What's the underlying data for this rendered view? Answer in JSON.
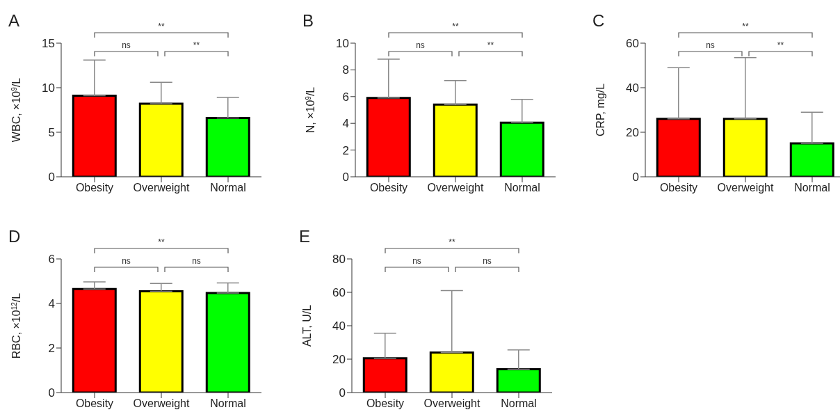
{
  "chart_data": [
    {
      "type": "bar",
      "title": "A",
      "ylabel": "WBC, ×10$^{9}$/L",
      "categories": [
        "Obesity",
        "Overweight",
        "Normal"
      ],
      "values": [
        9.1,
        8.2,
        6.6
      ],
      "colors": [
        "#ff0000",
        "#ffff00",
        "#00ff00"
      ],
      "errors": [
        [
          9.1,
          13.1
        ],
        [
          8.2,
          10.6
        ],
        [
          6.6,
          8.9
        ]
      ],
      "ylim": [
        0,
        15
      ],
      "yticks": [
        0,
        5,
        10,
        15
      ],
      "annotations": [
        "ns",
        "**",
        "**"
      ]
    },
    {
      "type": "bar",
      "title": "B",
      "ylabel": "N, ×10$^{9}$/L",
      "categories": [
        "Obesity",
        "Overweight",
        "Normal"
      ],
      "values": [
        5.9,
        5.4,
        4.05
      ],
      "colors": [
        "#ff0000",
        "#ffff00",
        "#00ff00"
      ],
      "errors": [
        [
          5.9,
          8.8
        ],
        [
          5.4,
          7.2
        ],
        [
          4.05,
          5.8
        ]
      ],
      "ylim": [
        0,
        10
      ],
      "yticks": [
        0,
        2,
        4,
        6,
        8,
        10
      ],
      "annotations": [
        "ns",
        "**",
        "**"
      ]
    },
    {
      "type": "bar",
      "title": "C",
      "ylabel": "CRP, mg/L",
      "categories": [
        "Obesity",
        "Overweight",
        "Normal"
      ],
      "values": [
        26,
        26,
        15
      ],
      "colors": [
        "#ff0000",
        "#ffff00",
        "#00ff00"
      ],
      "errors": [
        [
          26,
          49
        ],
        [
          26,
          53.5
        ],
        [
          15,
          29
        ]
      ],
      "ylim": [
        0,
        60
      ],
      "yticks": [
        0,
        20,
        40,
        60
      ],
      "annotations": [
        "ns",
        "**",
        "**"
      ]
    },
    {
      "type": "bar",
      "title": "D",
      "ylabel": "RBC, ×10$^{12}$/L",
      "categories": [
        "Obesity",
        "Overweight",
        "Normal"
      ],
      "values": [
        4.65,
        4.55,
        4.47
      ],
      "colors": [
        "#ff0000",
        "#ffff00",
        "#00ff00"
      ],
      "errors": [
        [
          4.65,
          4.97
        ],
        [
          4.55,
          4.9
        ],
        [
          4.47,
          4.92
        ]
      ],
      "ylim": [
        0,
        6
      ],
      "yticks": [
        0,
        2,
        4,
        6
      ],
      "annotations": [
        "ns",
        "ns",
        "**"
      ]
    },
    {
      "type": "bar",
      "title": "E",
      "ylabel": "ALT, U/L",
      "categories": [
        "Obesity",
        "Overweight",
        "Normal"
      ],
      "values": [
        20.5,
        24,
        14
      ],
      "colors": [
        "#ff0000",
        "#ffff00",
        "#00ff00"
      ],
      "errors": [
        [
          20.5,
          35.5
        ],
        [
          24,
          61
        ],
        [
          14,
          25.5
        ]
      ],
      "ylim": [
        0,
        80
      ],
      "yticks": [
        0,
        20,
        40,
        60,
        80
      ],
      "annotations": [
        "ns",
        "ns",
        "**"
      ]
    }
  ]
}
